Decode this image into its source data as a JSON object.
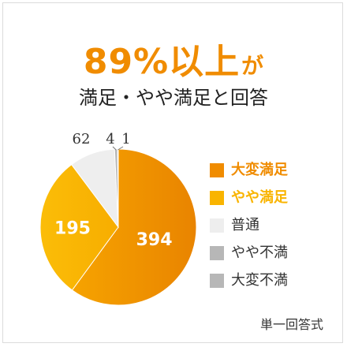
{
  "headline": {
    "main": "89%以上",
    "tail": "が"
  },
  "subtitle": "満足・やや満足と回答",
  "footer": "単一回答式",
  "chart_data": {
    "type": "pie",
    "start": "12 o'clock, clockwise",
    "legend_position": "right",
    "slices": [
      {
        "label": "大変満足",
        "value": 394,
        "color": "#f08c00",
        "label_color": "#ffffff",
        "legend_color": "#f08c00",
        "label_inside": true
      },
      {
        "label": "やや満足",
        "value": 195,
        "color": "#f9b400",
        "label_color": "#ffffff",
        "legend_color": "#f9b400",
        "label_inside": true
      },
      {
        "label": "普通",
        "value": 62,
        "color": "#eeeeee",
        "label_color": "#333333",
        "legend_color": "#333333",
        "label_inside": false
      },
      {
        "label": "やや不満",
        "value": 4,
        "color": "#b7b7b7",
        "label_color": "#333333",
        "legend_color": "#333333",
        "label_inside": false
      },
      {
        "label": "大変不満",
        "value": 1,
        "color": "#b7b7b7",
        "label_color": "#333333",
        "legend_color": "#333333",
        "label_inside": false
      }
    ]
  }
}
